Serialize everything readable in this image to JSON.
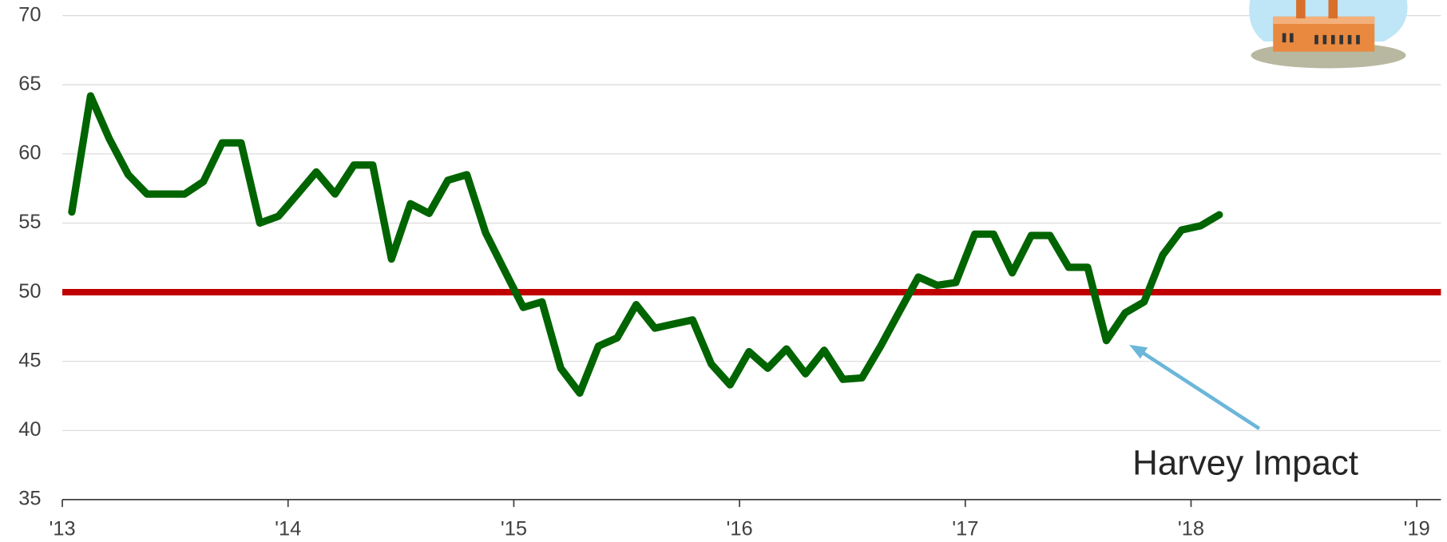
{
  "chart_data": {
    "type": "line",
    "x": [
      2013.042,
      2013.125,
      2013.208,
      2013.292,
      2013.375,
      2013.458,
      2013.542,
      2013.625,
      2013.708,
      2013.792,
      2013.875,
      2013.958,
      2014.042,
      2014.125,
      2014.208,
      2014.292,
      2014.375,
      2014.458,
      2014.542,
      2014.625,
      2014.708,
      2014.792,
      2014.875,
      2014.958,
      2015.042,
      2015.125,
      2015.208,
      2015.292,
      2015.375,
      2015.458,
      2015.542,
      2015.625,
      2015.708,
      2015.792,
      2015.875,
      2015.958,
      2016.042,
      2016.125,
      2016.208,
      2016.292,
      2016.375,
      2016.458,
      2016.542,
      2016.625,
      2016.708,
      2016.792,
      2016.875,
      2016.958,
      2017.042,
      2017.125,
      2017.208,
      2017.292,
      2017.375,
      2017.458,
      2017.542,
      2017.625,
      2017.708,
      2017.792,
      2017.875,
      2017.958,
      2018.042,
      2018.125
    ],
    "series": [
      {
        "color": "#006400",
        "values": [
          55.8,
          64.2,
          61.1,
          58.5,
          57.1,
          57.1,
          57.1,
          58.0,
          60.8,
          60.8,
          55.0,
          55.5,
          57.1,
          58.7,
          57.1,
          59.2,
          59.2,
          52.4,
          56.4,
          55.7,
          58.1,
          58.5,
          54.3,
          51.6,
          48.9,
          49.3,
          44.5,
          42.7,
          46.1,
          46.7,
          49.1,
          47.4,
          47.7,
          48.0,
          44.8,
          43.3,
          45.7,
          44.5,
          45.9,
          44.1,
          45.8,
          43.7,
          43.8,
          46.1,
          48.6,
          51.1,
          50.5,
          50.7,
          54.2,
          54.2,
          51.4,
          54.1,
          54.1,
          51.8,
          51.8,
          46.5,
          48.5,
          49.3,
          52.7,
          54.5,
          54.8,
          55.6
        ]
      }
    ],
    "reference_line": {
      "value": 50,
      "color": "#c00000"
    },
    "annotation": "Harvey Impact",
    "xlim": [
      2013,
      2019.107
    ],
    "xticks": [
      {
        "value": 2013,
        "label": "'13"
      },
      {
        "value": 2014,
        "label": "'14"
      },
      {
        "value": 2015,
        "label": "'15"
      },
      {
        "value": 2016,
        "label": "'16"
      },
      {
        "value": 2017,
        "label": "'17"
      },
      {
        "value": 2018,
        "label": "'18"
      },
      {
        "value": 2019,
        "label": "'19"
      }
    ],
    "ylim": [
      35,
      70
    ],
    "yticks": [
      35,
      40,
      45,
      50,
      55,
      60,
      65,
      70
    ],
    "grid": true
  }
}
